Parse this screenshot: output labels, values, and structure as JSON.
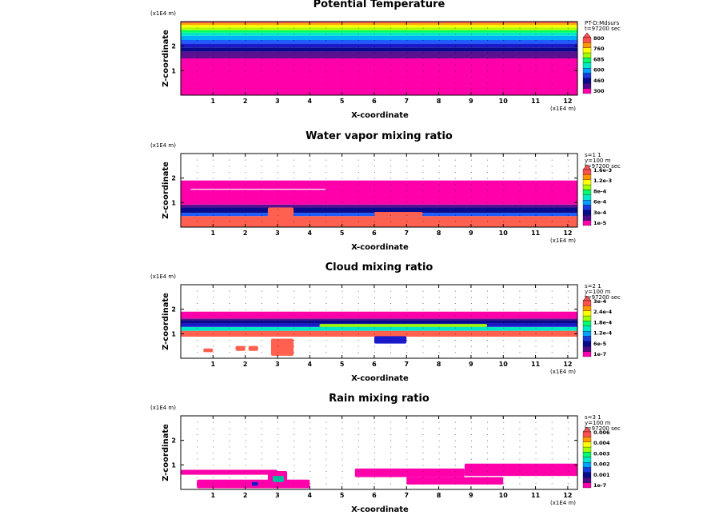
{
  "figure": {
    "background": "#ffffff"
  },
  "chart_data": [
    {
      "type": "heatmap",
      "title": "Potential Temperature",
      "xlabel": "X-coordinate",
      "ylabel": "Z-coordinate",
      "x_unit": "(x1E4 m)",
      "y_unit": "(x1E4 m)",
      "xticks": [
        "1",
        "2",
        "3",
        "4",
        "5",
        "6",
        "7",
        "8",
        "9",
        "10",
        "11",
        "12"
      ],
      "yticks": [
        "1",
        "2"
      ],
      "xlim": [
        0,
        12.3
      ],
      "ylim": [
        0,
        3.0
      ],
      "info": [
        "PT-D:Mdsurs",
        "t=97200 sec"
      ],
      "legend": {
        "labels": [
          "800",
          "760",
          "685",
          "600",
          "460",
          "300"
        ],
        "colors": [
          "#ff00aa",
          "#4b0b8c",
          "#0a0a8c",
          "#1a3ae0",
          "#00a0ff",
          "#00e8c8",
          "#00ff70",
          "#a0ff00",
          "#ffff00",
          "#ff9900",
          "#ff5050"
        ]
      },
      "layers": [
        {
          "z0": 0.0,
          "z1": 1.5,
          "color": "#ff00aa"
        },
        {
          "z0": 1.5,
          "z1": 1.78,
          "color": "#5a1090"
        },
        {
          "z0": 1.78,
          "z1": 1.95,
          "color": "#0a0a8c"
        },
        {
          "z0": 1.95,
          "z1": 2.1,
          "color": "#1a1acc"
        },
        {
          "z0": 2.1,
          "z1": 2.25,
          "color": "#1e5cff"
        },
        {
          "z0": 2.25,
          "z1": 2.42,
          "color": "#00b0ff"
        },
        {
          "z0": 2.42,
          "z1": 2.55,
          "color": "#00e8c8"
        },
        {
          "z0": 2.55,
          "z1": 2.65,
          "color": "#00ff60"
        },
        {
          "z0": 2.65,
          "z1": 2.76,
          "color": "#b0ff00"
        },
        {
          "z0": 2.76,
          "z1": 2.86,
          "color": "#ffff00"
        },
        {
          "z0": 2.86,
          "z1": 2.94,
          "color": "#ffaa00"
        },
        {
          "z0": 2.94,
          "z1": 3.0,
          "color": "#ff5050"
        }
      ],
      "patches": []
    },
    {
      "type": "heatmap",
      "title": "Water vapor mixing ratio",
      "xlabel": "X-coordinate",
      "ylabel": "Z-coordinate",
      "x_unit": "(x1E4 m)",
      "y_unit": "(x1E4 m)",
      "xticks": [
        "1",
        "2",
        "3",
        "4",
        "5",
        "6",
        "7",
        "8",
        "9",
        "10",
        "11",
        "12"
      ],
      "yticks": [
        "1",
        "2"
      ],
      "xlim": [
        0,
        12.3
      ],
      "ylim": [
        0,
        3.0
      ],
      "info": [
        "s=1 1",
        "y=100 m",
        "t=97200 sec"
      ],
      "legend": {
        "labels": [
          "1.6e-3",
          "1.2e-3",
          "8e-4",
          "6e-4",
          "3e-4",
          "1e-5"
        ],
        "colors": [
          "#ff00aa",
          "#4b0b8c",
          "#0a0a8c",
          "#1a3ae0",
          "#00a0ff",
          "#00e8c8",
          "#00ff70",
          "#a0ff00",
          "#ffff00",
          "#ff9900",
          "#ff5050"
        ]
      },
      "layers": [
        {
          "z0": 0.0,
          "z1": 0.45,
          "color": "#ff6050"
        },
        {
          "z0": 0.45,
          "z1": 0.58,
          "color": "#1e5cff"
        },
        {
          "z0": 0.58,
          "z1": 0.8,
          "color": "#0a0a8c"
        },
        {
          "z0": 0.8,
          "z1": 0.92,
          "color": "#5a1090"
        },
        {
          "z0": 0.92,
          "z1": 1.9,
          "color": "#ff00aa"
        }
      ],
      "patches": [
        {
          "x0": 2.7,
          "x1": 3.5,
          "z0": 0.4,
          "z1": 0.8,
          "color": "#ff6050"
        },
        {
          "x0": 6.0,
          "x1": 7.5,
          "z0": 0.45,
          "z1": 0.62,
          "color": "#ff6050"
        },
        {
          "x0": 0.3,
          "x1": 4.5,
          "z0": 1.52,
          "z1": 1.56,
          "color": "#ffffff"
        }
      ]
    },
    {
      "type": "heatmap",
      "title": "Cloud mixing ratio",
      "xlabel": "X-coordinate",
      "ylabel": "Z-coordinate",
      "x_unit": "(x1E4 m)",
      "y_unit": "(x1E4 m)",
      "xticks": [
        "1",
        "2",
        "3",
        "4",
        "5",
        "6",
        "7",
        "8",
        "9",
        "10",
        "11",
        "12"
      ],
      "yticks": [
        "1",
        "2"
      ],
      "xlim": [
        0,
        12.3
      ],
      "ylim": [
        0,
        3.0
      ],
      "info": [
        "s=2 1",
        "y=100 m",
        "t=97200 sec"
      ],
      "legend": {
        "labels": [
          "3e-4",
          "2.4e-4",
          "1.8e-4",
          "1.2e-4",
          "6e-5",
          "1e-7"
        ],
        "colors": [
          "#ff00aa",
          "#4b0b8c",
          "#0a0a8c",
          "#1a3ae0",
          "#00a0ff",
          "#00e8c8",
          "#00ff70",
          "#a0ff00",
          "#ffff00",
          "#ff9900",
          "#ff5050"
        ]
      },
      "layers": [
        {
          "z0": 0.88,
          "z1": 1.12,
          "color": "#ff6050"
        },
        {
          "z0": 1.12,
          "z1": 1.28,
          "color": "#00e8c8"
        },
        {
          "z0": 1.28,
          "z1": 1.42,
          "color": "#1a1acc"
        },
        {
          "z0": 1.42,
          "z1": 1.55,
          "color": "#0a0a8c"
        },
        {
          "z0": 1.55,
          "z1": 1.62,
          "color": "#5a1090"
        },
        {
          "z0": 1.62,
          "z1": 1.9,
          "color": "#ff00aa"
        }
      ],
      "patches": [
        {
          "x0": 0.7,
          "x1": 1.0,
          "z0": 0.25,
          "z1": 0.4,
          "color": "#ff6050"
        },
        {
          "x0": 1.7,
          "x1": 2.0,
          "z0": 0.3,
          "z1": 0.5,
          "color": "#ff6050"
        },
        {
          "x0": 2.1,
          "x1": 2.4,
          "z0": 0.3,
          "z1": 0.5,
          "color": "#ff6050"
        },
        {
          "x0": 2.8,
          "x1": 3.5,
          "z0": 0.1,
          "z1": 0.8,
          "color": "#ff6050"
        },
        {
          "x0": 6.0,
          "x1": 7.0,
          "z0": 0.6,
          "z1": 0.9,
          "color": "#1a1acc"
        },
        {
          "x0": 4.3,
          "x1": 9.5,
          "z0": 1.28,
          "z1": 1.4,
          "color": "#a0ff00"
        }
      ]
    },
    {
      "type": "heatmap",
      "title": "Rain mixing ratio",
      "xlabel": "X-coordinate",
      "ylabel": "Z-coordinate",
      "x_unit": "(x1E4 m)",
      "y_unit": "(x1E4 m)",
      "xticks": [
        "1",
        "2",
        "3",
        "4",
        "5",
        "6",
        "7",
        "8",
        "9",
        "10",
        "11",
        "12"
      ],
      "yticks": [
        "1",
        "2"
      ],
      "xlim": [
        0,
        12.3
      ],
      "ylim": [
        0,
        3.0
      ],
      "info": [
        "s=3 1",
        "y=100 m",
        "t=97200 sec"
      ],
      "legend": {
        "labels": [
          "0.006",
          "0.004",
          "0.003",
          "0.002",
          "0.001",
          "1e-7"
        ],
        "colors": [
          "#ff00aa",
          "#4b0b8c",
          "#0a0a8c",
          "#1a3ae0",
          "#00a0ff",
          "#00e8c8",
          "#00ff70",
          "#a0ff00",
          "#ffff00",
          "#ff9900",
          "#ff5050"
        ]
      },
      "layers": [],
      "patches": [
        {
          "x0": 0.0,
          "x1": 3.0,
          "z0": 0.6,
          "z1": 0.8,
          "color": "#ff00aa"
        },
        {
          "x0": 0.5,
          "x1": 4.0,
          "z0": 0.05,
          "z1": 0.4,
          "color": "#ff00aa"
        },
        {
          "x0": 2.7,
          "x1": 3.3,
          "z0": 0.15,
          "z1": 0.75,
          "color": "#ff00aa"
        },
        {
          "x0": 2.85,
          "x1": 3.2,
          "z0": 0.3,
          "z1": 0.55,
          "color": "#00c0a0"
        },
        {
          "x0": 2.2,
          "x1": 2.4,
          "z0": 0.15,
          "z1": 0.3,
          "color": "#1a1acc"
        },
        {
          "x0": 5.4,
          "x1": 8.8,
          "z0": 0.5,
          "z1": 0.85,
          "color": "#ff00aa"
        },
        {
          "x0": 8.8,
          "x1": 12.3,
          "z0": 0.55,
          "z1": 1.05,
          "color": "#ff00aa"
        },
        {
          "x0": 7.0,
          "x1": 10.0,
          "z0": 0.2,
          "z1": 0.5,
          "color": "#ff00aa"
        }
      ]
    }
  ]
}
